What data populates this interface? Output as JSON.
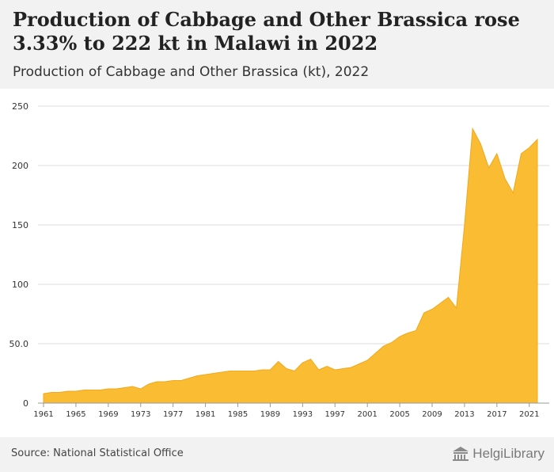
{
  "header": {
    "title": "Production of Cabbage and Other Brassica rose 3.33% to 222 kt in Malawi in 2022",
    "subtitle": "Production of Cabbage and Other Brassica (kt), 2022"
  },
  "footer": {
    "source": "Source: National Statistical Office",
    "brand": "HelgiLibrary",
    "brand_icon": "library-building-icon"
  },
  "colors": {
    "area_fill": "#F9BC33",
    "area_stroke": "#F0A81E",
    "grid": "#DDDDDD",
    "axis_text": "#333333",
    "header_bg": "#F2F2F2"
  },
  "chart_data": {
    "type": "area",
    "xlabel": "",
    "ylabel": "",
    "x": [
      1961,
      1962,
      1963,
      1964,
      1965,
      1966,
      1967,
      1968,
      1969,
      1970,
      1971,
      1972,
      1973,
      1974,
      1975,
      1976,
      1977,
      1978,
      1979,
      1980,
      1981,
      1982,
      1983,
      1984,
      1985,
      1986,
      1987,
      1988,
      1989,
      1990,
      1991,
      1992,
      1993,
      1994,
      1995,
      1996,
      1997,
      1998,
      1999,
      2000,
      2001,
      2002,
      2003,
      2004,
      2005,
      2006,
      2007,
      2008,
      2009,
      2010,
      2011,
      2012,
      2013,
      2014,
      2015,
      2016,
      2017,
      2018,
      2019,
      2020,
      2021,
      2022
    ],
    "values": [
      8,
      9,
      9,
      10,
      10,
      11,
      11,
      11,
      12,
      12,
      13,
      14,
      12,
      16,
      18,
      18,
      19,
      19,
      21,
      23,
      24,
      25,
      26,
      27,
      27,
      27,
      27,
      28,
      28,
      35,
      29,
      27,
      34,
      37,
      28,
      31,
      28,
      29,
      30,
      33,
      36,
      42,
      48,
      51,
      56,
      59,
      61,
      76,
      79,
      84,
      89,
      80,
      150,
      231,
      218,
      198,
      210,
      189,
      177,
      210,
      215,
      222
    ],
    "ylim": [
      0,
      250
    ],
    "yticks": [
      0,
      50,
      100,
      150,
      200,
      250
    ],
    "ytick_labels": [
      "0",
      "50.0",
      "100",
      "150",
      "200",
      "250"
    ],
    "xticks": [
      1961,
      1965,
      1969,
      1973,
      1977,
      1981,
      1985,
      1989,
      1993,
      1997,
      2001,
      2005,
      2009,
      2013,
      2017,
      2021
    ],
    "grid": true,
    "legend": "none"
  }
}
